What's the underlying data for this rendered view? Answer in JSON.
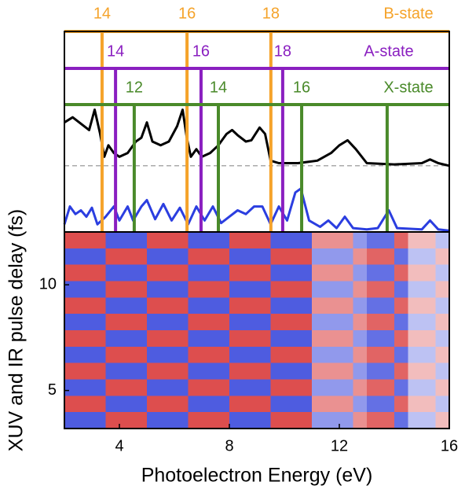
{
  "chart_data": {
    "type": "heatmap",
    "xlabel": "Photoelectron Energy (eV)",
    "ylabel": "XUV and IR pulse delay (fs)",
    "xlim": [
      2,
      16
    ],
    "xticks": [
      4,
      8,
      12,
      16
    ],
    "ylim": [
      3.2,
      12.5
    ],
    "yticks": [
      5,
      10
    ],
    "colormap": [
      "#2233d8",
      "#ffffff",
      "#d42222"
    ],
    "zlim": [
      -1,
      1
    ],
    "z": [
      [
        0.8,
        0.8,
        0.8,
        -0.8,
        -0.8,
        -0.8,
        0.8,
        0.8,
        0.8,
        -0.8,
        -0.8,
        -0.8,
        0.8,
        0.8,
        0.8,
        -0.8,
        -0.8,
        -0.8,
        0.5,
        0.5,
        0.5,
        -0.5,
        -0.7,
        -0.7,
        0.7,
        0.3,
        0.3,
        -0.3
      ],
      [
        -0.8,
        -0.8,
        -0.8,
        0.8,
        0.8,
        0.8,
        -0.8,
        -0.8,
        -0.8,
        0.8,
        0.8,
        0.8,
        -0.8,
        -0.8,
        -0.8,
        0.8,
        0.8,
        0.8,
        -0.5,
        -0.5,
        -0.5,
        0.5,
        0.7,
        0.7,
        -0.7,
        -0.3,
        -0.3,
        0.3
      ],
      [
        0.8,
        0.8,
        0.8,
        -0.8,
        -0.8,
        -0.8,
        0.8,
        0.8,
        0.8,
        -0.8,
        -0.8,
        -0.8,
        0.8,
        0.8,
        0.8,
        -0.8,
        -0.8,
        -0.8,
        0.5,
        0.5,
        0.5,
        -0.5,
        -0.7,
        -0.7,
        0.7,
        0.3,
        0.3,
        -0.3
      ],
      [
        -0.8,
        -0.8,
        -0.8,
        0.8,
        0.8,
        0.8,
        -0.8,
        -0.8,
        -0.8,
        0.8,
        0.8,
        0.8,
        -0.8,
        -0.8,
        -0.8,
        0.8,
        0.8,
        0.8,
        -0.5,
        -0.5,
        -0.5,
        0.5,
        0.7,
        0.7,
        -0.7,
        -0.3,
        -0.3,
        0.3
      ],
      [
        0.8,
        0.8,
        0.8,
        -0.8,
        -0.8,
        -0.8,
        0.8,
        0.8,
        0.8,
        -0.8,
        -0.8,
        -0.8,
        0.8,
        0.8,
        0.8,
        -0.8,
        -0.8,
        -0.8,
        0.5,
        0.5,
        0.5,
        -0.5,
        -0.7,
        -0.7,
        0.7,
        0.3,
        0.3,
        -0.3
      ],
      [
        -0.8,
        -0.8,
        -0.8,
        0.8,
        0.8,
        0.8,
        -0.8,
        -0.8,
        -0.8,
        0.8,
        0.8,
        0.8,
        -0.8,
        -0.8,
        -0.8,
        0.8,
        0.8,
        0.8,
        -0.5,
        -0.5,
        -0.5,
        0.5,
        0.7,
        0.7,
        -0.7,
        -0.3,
        -0.3,
        0.3
      ],
      [
        0.8,
        0.8,
        0.8,
        -0.8,
        -0.8,
        -0.8,
        0.8,
        0.8,
        0.8,
        -0.8,
        -0.8,
        -0.8,
        0.8,
        0.8,
        0.8,
        -0.8,
        -0.8,
        -0.8,
        0.5,
        0.5,
        0.5,
        -0.5,
        -0.7,
        -0.7,
        0.7,
        0.3,
        0.3,
        -0.3
      ],
      [
        -0.8,
        -0.8,
        -0.8,
        0.8,
        0.8,
        0.8,
        -0.8,
        -0.8,
        -0.8,
        0.8,
        0.8,
        0.8,
        -0.8,
        -0.8,
        -0.8,
        0.8,
        0.8,
        0.8,
        -0.5,
        -0.5,
        -0.5,
        0.5,
        0.7,
        0.7,
        -0.7,
        -0.3,
        -0.3,
        0.3
      ],
      [
        0.8,
        0.8,
        0.8,
        -0.8,
        -0.8,
        -0.8,
        0.8,
        0.8,
        0.8,
        -0.8,
        -0.8,
        -0.8,
        0.8,
        0.8,
        0.8,
        -0.8,
        -0.8,
        -0.8,
        0.5,
        0.5,
        0.5,
        -0.5,
        -0.7,
        -0.7,
        0.7,
        0.3,
        0.3,
        -0.3
      ],
      [
        -0.8,
        -0.8,
        -0.8,
        0.8,
        0.8,
        0.8,
        -0.8,
        -0.8,
        -0.8,
        0.8,
        0.8,
        0.8,
        -0.8,
        -0.8,
        -0.8,
        0.8,
        0.8,
        0.8,
        -0.5,
        -0.5,
        -0.5,
        0.5,
        0.7,
        0.7,
        -0.7,
        -0.3,
        -0.3,
        0.3
      ],
      [
        0.8,
        0.8,
        0.8,
        -0.8,
        -0.8,
        -0.8,
        0.8,
        0.8,
        0.8,
        -0.8,
        -0.8,
        -0.8,
        0.8,
        0.8,
        0.8,
        -0.8,
        -0.8,
        -0.8,
        0.5,
        0.5,
        0.5,
        -0.5,
        -0.7,
        -0.7,
        0.7,
        0.3,
        0.3,
        -0.3
      ],
      [
        -0.8,
        -0.8,
        -0.8,
        0.8,
        0.8,
        0.8,
        -0.8,
        -0.8,
        -0.8,
        0.8,
        0.8,
        0.8,
        -0.8,
        -0.8,
        -0.8,
        0.8,
        0.8,
        0.8,
        -0.5,
        -0.5,
        -0.5,
        0.5,
        0.7,
        0.7,
        -0.7,
        -0.3,
        -0.3,
        0.3
      ]
    ],
    "spectra": {
      "ylim": [
        0,
        100
      ],
      "baseline": 52,
      "baseline_color": "#aaaaaa",
      "series": [
        {
          "color": "#000000",
          "x": [
            2.0,
            2.3,
            2.6,
            2.9,
            3.1,
            3.3,
            3.45,
            3.6,
            3.8,
            4.0,
            4.3,
            4.6,
            4.8,
            5.0,
            5.2,
            5.5,
            5.8,
            6.1,
            6.3,
            6.45,
            6.6,
            6.8,
            7.0,
            7.3,
            7.6,
            7.9,
            8.1,
            8.3,
            8.6,
            8.8,
            9.1,
            9.3,
            9.5,
            9.8,
            10.5,
            11.2,
            11.7,
            12.0,
            12.3,
            12.6,
            13.0,
            14.0,
            15.0,
            15.3,
            15.6,
            16.0
          ],
          "values": [
            86,
            90,
            85,
            80,
            96,
            77,
            59,
            68,
            62,
            59,
            62,
            71,
            74,
            86,
            71,
            68,
            71,
            83,
            96,
            74,
            59,
            65,
            59,
            62,
            68,
            77,
            80,
            76,
            71,
            72,
            82,
            77,
            56,
            54,
            54,
            56,
            62,
            68,
            72,
            65,
            54,
            53,
            54,
            57,
            54,
            52
          ]
        },
        {
          "color": "#2b3ee0",
          "x": [
            2.0,
            2.2,
            2.4,
            2.6,
            2.8,
            3.0,
            3.2,
            3.5,
            3.8,
            4.0,
            4.3,
            4.5,
            4.8,
            5.0,
            5.3,
            5.6,
            5.9,
            6.2,
            6.5,
            6.8,
            7.1,
            7.4,
            7.7,
            8.0,
            8.3,
            8.6,
            8.9,
            9.2,
            9.5,
            9.8,
            10.1,
            10.4,
            10.6,
            10.9,
            11.3,
            11.6,
            11.9,
            12.2,
            12.5,
            13.0,
            13.4,
            13.8,
            14.1,
            15.0,
            15.3,
            15.6,
            16.0
          ],
          "values": [
            6,
            20,
            14,
            17,
            12,
            19,
            6,
            12,
            20,
            9,
            20,
            9,
            20,
            25,
            10,
            22,
            9,
            19,
            6,
            20,
            9,
            20,
            7,
            12,
            17,
            14,
            20,
            20,
            6,
            20,
            9,
            31,
            34,
            9,
            4,
            9,
            3,
            12,
            3,
            2,
            3,
            17,
            3,
            2,
            9,
            2,
            1
          ]
        }
      ]
    },
    "states": [
      {
        "name": "B-state",
        "color": "#f5a32a",
        "lines": [
          {
            "x": 3.37,
            "label": "14"
          },
          {
            "x": 6.46,
            "label": "16"
          },
          {
            "x": 9.51,
            "label": "18"
          }
        ]
      },
      {
        "name": "A-state",
        "color": "#8a1fc0",
        "lines": [
          {
            "x": 3.86,
            "label": "14"
          },
          {
            "x": 6.97,
            "label": "16"
          },
          {
            "x": 9.94,
            "label": "18"
          }
        ]
      },
      {
        "name": "X-state",
        "color": "#4a8a2a",
        "lines": [
          {
            "x": 4.54,
            "label": "12"
          },
          {
            "x": 7.6,
            "label": "14"
          },
          {
            "x": 10.63,
            "label": "16"
          },
          {
            "x": 13.74,
            "label": null
          }
        ]
      }
    ]
  }
}
